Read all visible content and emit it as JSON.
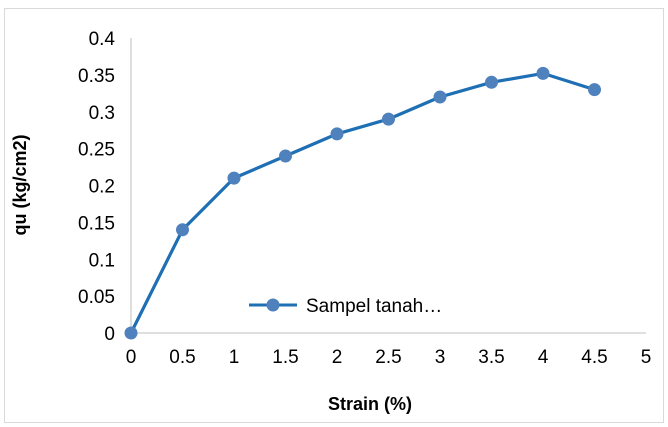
{
  "chart_data": {
    "type": "line",
    "title": "",
    "xlabel": "Strain (%)",
    "ylabel": "qu (kg/cm2)",
    "xlim": [
      0,
      5
    ],
    "ylim": [
      0,
      0.4
    ],
    "x_ticks": [
      "0",
      "0.5",
      "1",
      "1.5",
      "2",
      "2.5",
      "3",
      "3.5",
      "4",
      "4.5",
      "5"
    ],
    "y_ticks": [
      "0",
      "0.05",
      "0.1",
      "0.15",
      "0.2",
      "0.25",
      "0.3",
      "0.35",
      "0.4"
    ],
    "x": [
      0,
      0.5,
      1,
      1.5,
      2,
      2.5,
      3,
      3.5,
      4,
      4.5
    ],
    "series": [
      {
        "name": "Sampel tanah…",
        "values": [
          0,
          0.14,
          0.21,
          0.24,
          0.27,
          0.29,
          0.32,
          0.34,
          0.352,
          0.33
        ],
        "color": "#1f6fb4",
        "marker_color": "#4f81bd"
      }
    ],
    "grid": false,
    "legend_position": "inside-bottom-center",
    "frame_color": "#d9d9d9",
    "axis_color": "#bfbfbf"
  }
}
